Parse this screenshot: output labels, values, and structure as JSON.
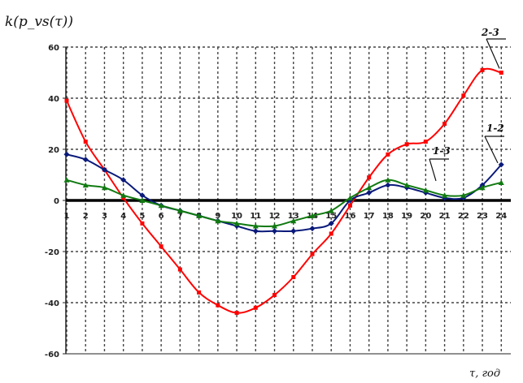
{
  "chart_data": {
    "type": "line",
    "ylabel": "k(p_vs(τ))",
    "xlabel": "τ, год",
    "x": [
      1,
      2,
      3,
      4,
      5,
      6,
      7,
      8,
      9,
      10,
      11,
      12,
      13,
      14,
      15,
      16,
      17,
      18,
      19,
      20,
      21,
      22,
      23,
      24
    ],
    "ylim": [
      -60,
      60
    ],
    "yticks": [
      -60,
      -40,
      -20,
      0,
      20,
      40,
      60
    ],
    "grid": true,
    "series": [
      {
        "name": "2-3",
        "color": "#ff0000",
        "marker": "square",
        "values": [
          39,
          23,
          12,
          1,
          -9,
          -18,
          -27,
          -36,
          -41,
          -44,
          -42,
          -37,
          -30,
          -21,
          -13,
          -2,
          9,
          18,
          22,
          23,
          30,
          41,
          51,
          50
        ]
      },
      {
        "name": "1-2",
        "color": "#0a1a7a",
        "marker": "diamond",
        "values": [
          18,
          16,
          12,
          8,
          2,
          -2,
          -4,
          -6,
          -8,
          -10,
          -12,
          -12,
          -12,
          -11,
          -9,
          0,
          3,
          6,
          5,
          3,
          1,
          1,
          6,
          14
        ]
      },
      {
        "name": "1-3",
        "color": "#117a11",
        "marker": "triangle",
        "values": [
          8,
          6,
          5,
          2,
          0,
          -2,
          -4,
          -6,
          -8,
          -9,
          -10,
          -10,
          -8,
          -6,
          -4,
          1,
          5,
          8,
          6,
          4,
          2,
          2,
          5,
          7
        ]
      }
    ]
  }
}
